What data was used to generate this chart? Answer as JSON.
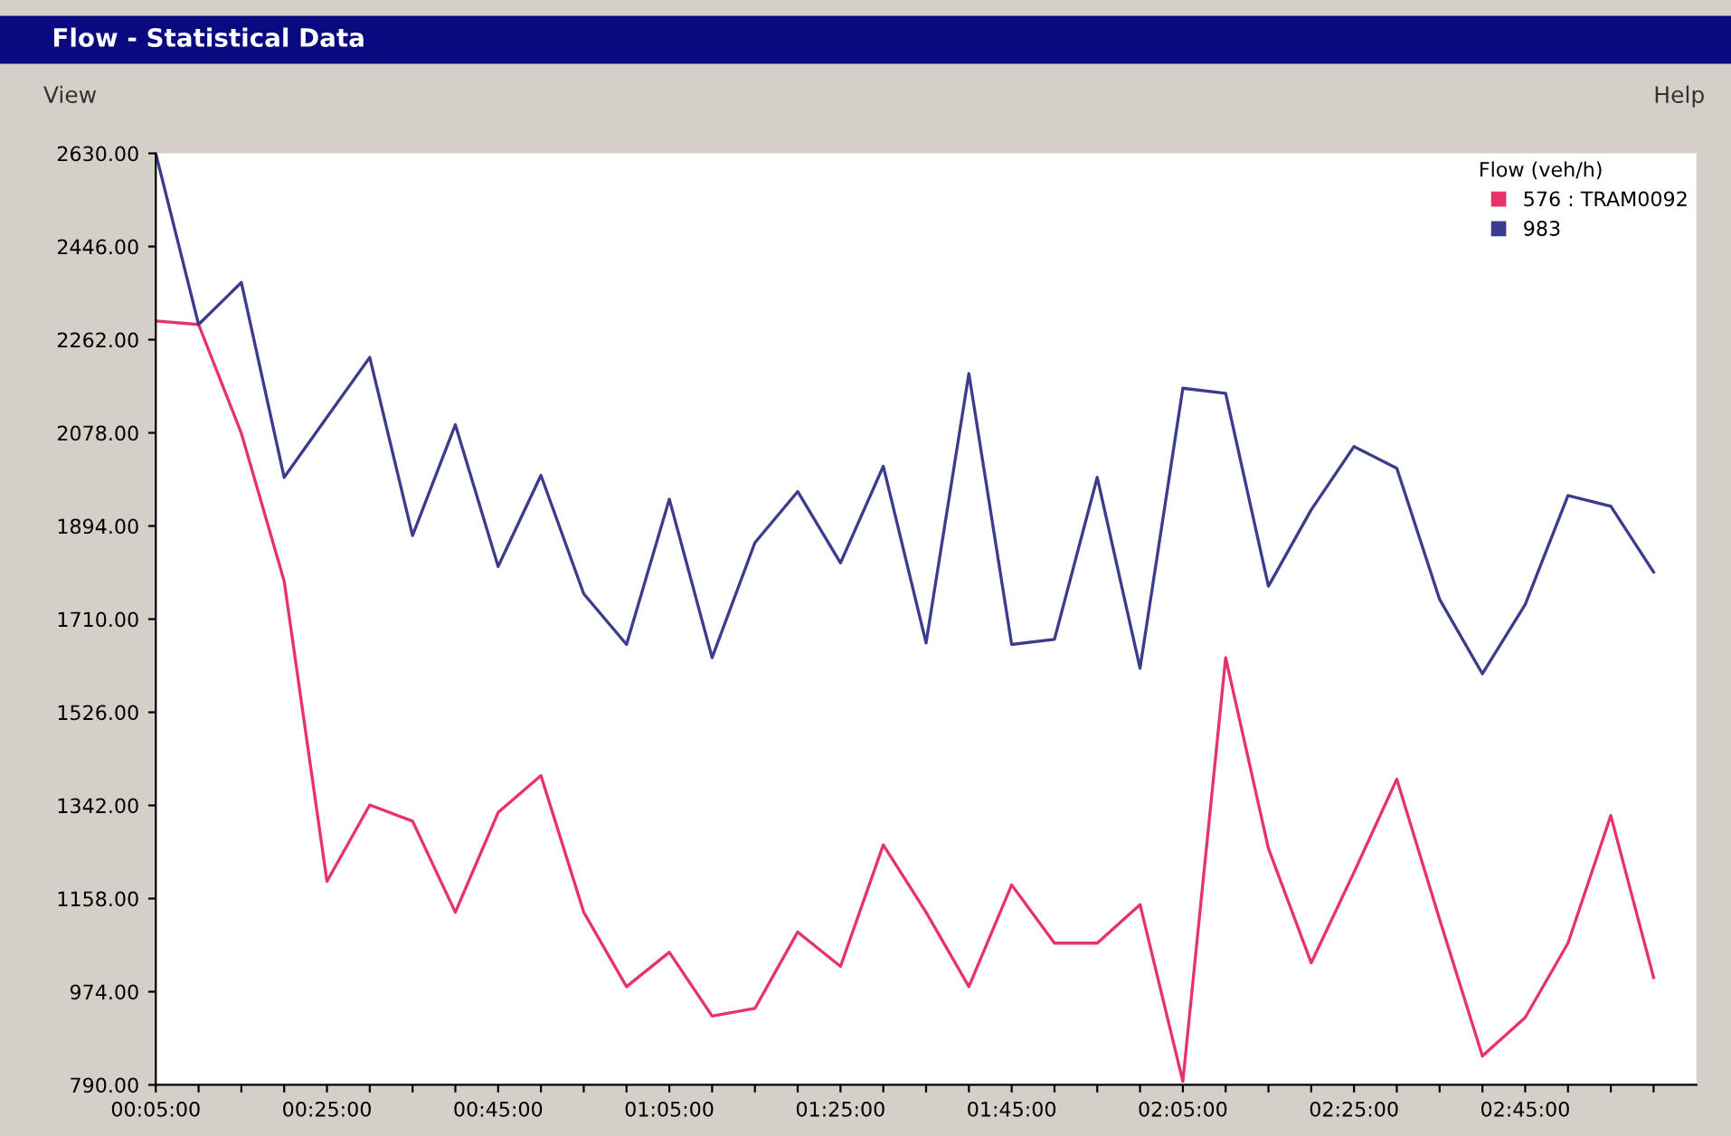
{
  "chart_data": {
    "type": "line",
    "title": "Flow - Statistical Data",
    "annotations": [
      "View",
      "Help"
    ],
    "legend_title": "Flow (veh/h)",
    "categories": [
      "00:05:00",
      null,
      null,
      null,
      "00:25:00",
      null,
      null,
      null,
      "00:45:00",
      null,
      null,
      null,
      "01:05:00",
      null,
      null,
      null,
      "01:25:00",
      null,
      null,
      null,
      "01:45:00",
      null,
      null,
      null,
      "02:05:00",
      null,
      null,
      null,
      "02:25:00",
      null,
      null,
      null,
      "02:45:00",
      null,
      null,
      null
    ],
    "series": [
      {
        "name": "576 : TRAM0092",
        "color": "#e8336a",
        "values": [
          2299,
          2292,
          2077,
          1785,
          1192,
          1343,
          1311,
          1131,
          1328,
          1401,
          1131,
          984,
          1052,
          926,
          941,
          1092,
          1024,
          1264,
          1131,
          984,
          1185,
          1070,
          1070,
          1146,
          797,
          1634,
          1257,
          1031,
          1210,
          1394,
          1117,
          847,
          923,
          1070,
          1322,
          1002
        ]
      },
      {
        "name": "983",
        "color": "#3c3c8c",
        "values": [
          2630,
          2292,
          2375,
          1990,
          2109,
          2227,
          1875,
          2094,
          1814,
          1994,
          1760,
          1660,
          1947,
          1634,
          1861,
          1962,
          1821,
          2012,
          1663,
          2195,
          1660,
          1670,
          1990,
          1613,
          2166,
          2156,
          1775,
          1926,
          2051,
          2008,
          1749,
          1602,
          1739,
          1954,
          1933,
          1803
        ]
      }
    ],
    "ylim": [
      790,
      2630
    ],
    "yticks": [
      {
        "value": 790,
        "label": "790.00"
      },
      {
        "value": 974,
        "label": "974.00"
      },
      {
        "value": 1158,
        "label": "1158.00"
      },
      {
        "value": 1342,
        "label": "1342.00"
      },
      {
        "value": 1526,
        "label": "1526.00"
      },
      {
        "value": 1710,
        "label": "1710.00"
      },
      {
        "value": 1894,
        "label": "1894.00"
      },
      {
        "value": 2078,
        "label": "2078.00"
      },
      {
        "value": 2262,
        "label": "2262.00"
      },
      {
        "value": 2446,
        "label": "2446.00"
      },
      {
        "value": 2630,
        "label": "2630.00"
      }
    ],
    "grid": false,
    "legend": "top right",
    "marker": "none",
    "line_style": "solid"
  }
}
